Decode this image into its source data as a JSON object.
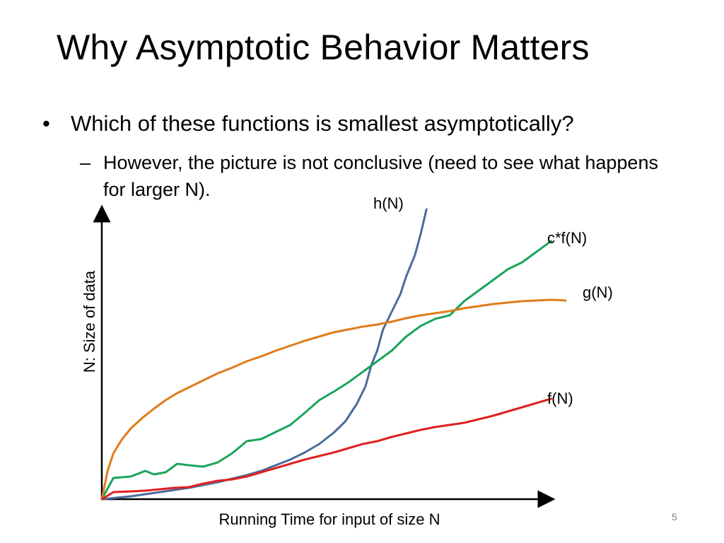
{
  "slide": {
    "title": "Why Asymptotic Behavior Matters",
    "bullet": {
      "marker": "•",
      "text": "Which of these functions is smallest asymptotically?"
    },
    "sub_bullet": {
      "marker": "–",
      "text": "However, the picture is not conclusive (need to see what happens for larger N)."
    },
    "page_number": "5"
  },
  "chart_data": {
    "type": "line",
    "xlabel": "Running Time for input of size N",
    "ylabel": "N: Size of data",
    "grid": false,
    "legend": "inline labels at line ends",
    "series": [
      {
        "name": "h(N)",
        "color": "#4a6c9b",
        "points": [
          [
            0,
            0
          ],
          [
            5,
            0.2
          ],
          [
            10,
            0.4
          ],
          [
            15,
            0.7
          ],
          [
            20,
            1
          ],
          [
            25,
            1.3
          ],
          [
            30,
            1.6
          ],
          [
            35,
            2
          ],
          [
            40,
            2.4
          ],
          [
            45,
            2.9
          ],
          [
            50,
            3.4
          ],
          [
            55,
            4
          ],
          [
            60,
            4.8
          ],
          [
            65,
            5.6
          ],
          [
            70,
            6.6
          ],
          [
            75,
            7.8
          ],
          [
            80,
            9.4
          ],
          [
            84,
            11
          ],
          [
            88,
            13.5
          ],
          [
            91,
            16
          ],
          [
            93,
            19
          ],
          [
            95,
            21
          ],
          [
            97,
            24
          ],
          [
            100,
            26.5
          ],
          [
            103,
            29
          ],
          [
            105,
            31.5
          ],
          [
            108,
            34.5
          ],
          [
            110,
            37.5
          ],
          [
            112,
            41
          ]
        ]
      },
      {
        "name": "c*f(N)",
        "color": "#1aa55a",
        "points": [
          [
            0,
            0
          ],
          [
            4,
            3
          ],
          [
            10,
            3.2
          ],
          [
            15,
            4
          ],
          [
            18,
            3.5
          ],
          [
            22,
            3.8
          ],
          [
            26,
            5
          ],
          [
            30,
            4.8
          ],
          [
            35,
            4.6
          ],
          [
            40,
            5.2
          ],
          [
            45,
            6.5
          ],
          [
            50,
            8.2
          ],
          [
            55,
            8.5
          ],
          [
            60,
            9.5
          ],
          [
            65,
            10.5
          ],
          [
            70,
            12.2
          ],
          [
            75,
            14
          ],
          [
            80,
            15.2
          ],
          [
            85,
            16.5
          ],
          [
            90,
            18
          ],
          [
            95,
            19.5
          ],
          [
            100,
            21
          ],
          [
            105,
            23
          ],
          [
            110,
            24.5
          ],
          [
            115,
            25.5
          ],
          [
            120,
            26
          ],
          [
            125,
            28
          ],
          [
            130,
            29.5
          ],
          [
            135,
            31
          ],
          [
            140,
            32.5
          ],
          [
            145,
            33.5
          ],
          [
            150,
            35
          ],
          [
            155,
            36.5
          ]
        ]
      },
      {
        "name": "g(N)",
        "color": "#e07b1a",
        "points": [
          [
            0,
            0
          ],
          [
            2,
            4
          ],
          [
            4,
            6.5
          ],
          [
            7,
            8.5
          ],
          [
            10,
            10
          ],
          [
            14,
            11.5
          ],
          [
            18,
            12.8
          ],
          [
            22,
            14
          ],
          [
            26,
            15
          ],
          [
            30,
            15.8
          ],
          [
            35,
            16.8
          ],
          [
            40,
            17.8
          ],
          [
            45,
            18.6
          ],
          [
            50,
            19.5
          ],
          [
            55,
            20.2
          ],
          [
            60,
            21
          ],
          [
            65,
            21.7
          ],
          [
            70,
            22.4
          ],
          [
            75,
            23
          ],
          [
            80,
            23.6
          ],
          [
            85,
            24
          ],
          [
            90,
            24.4
          ],
          [
            95,
            24.7
          ],
          [
            100,
            25.1
          ],
          [
            105,
            25.6
          ],
          [
            110,
            26
          ],
          [
            115,
            26.3
          ],
          [
            120,
            26.6
          ],
          [
            125,
            27
          ],
          [
            130,
            27.3
          ],
          [
            135,
            27.6
          ],
          [
            140,
            27.8
          ],
          [
            145,
            28
          ],
          [
            150,
            28.1
          ],
          [
            155,
            28.2
          ],
          [
            160,
            28.1
          ]
        ]
      },
      {
        "name": "f(N)",
        "color": "#e02020",
        "points": [
          [
            0,
            0
          ],
          [
            4,
            1
          ],
          [
            10,
            1.1
          ],
          [
            15,
            1.2
          ],
          [
            20,
            1.4
          ],
          [
            25,
            1.6
          ],
          [
            30,
            1.7
          ],
          [
            35,
            2.2
          ],
          [
            40,
            2.6
          ],
          [
            45,
            2.8
          ],
          [
            50,
            3.2
          ],
          [
            55,
            3.8
          ],
          [
            60,
            4.4
          ],
          [
            65,
            5
          ],
          [
            70,
            5.6
          ],
          [
            75,
            6.1
          ],
          [
            80,
            6.6
          ],
          [
            85,
            7.2
          ],
          [
            90,
            7.8
          ],
          [
            95,
            8.2
          ],
          [
            100,
            8.8
          ],
          [
            105,
            9.3
          ],
          [
            110,
            9.8
          ],
          [
            115,
            10.2
          ],
          [
            120,
            10.5
          ],
          [
            125,
            10.8
          ],
          [
            130,
            11.3
          ],
          [
            135,
            11.8
          ],
          [
            140,
            12.4
          ],
          [
            145,
            13
          ],
          [
            150,
            13.6
          ],
          [
            155,
            14.2
          ]
        ]
      }
    ]
  }
}
